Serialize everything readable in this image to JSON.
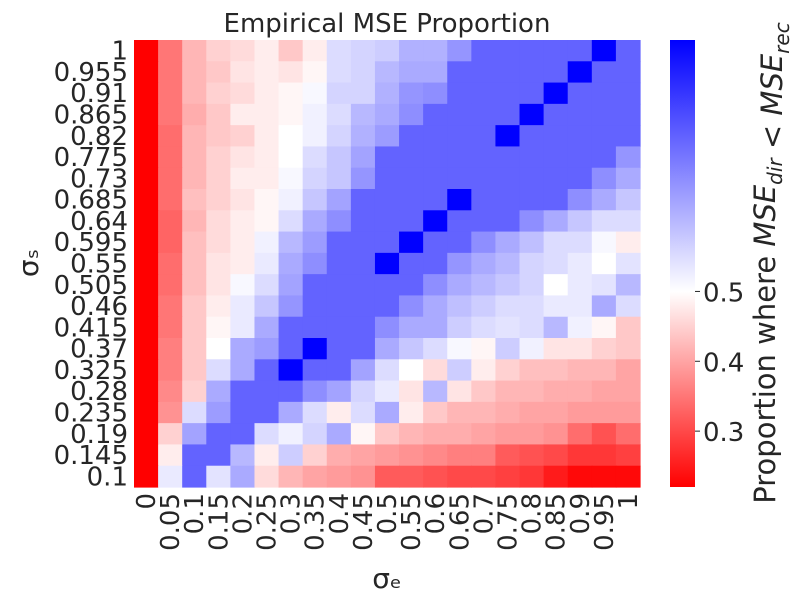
{
  "chart_data": {
    "type": "heatmap",
    "title": "Empirical MSE Proportion",
    "xlabel": "σₑ",
    "ylabel": "σₛ",
    "x": [
      "0",
      "0.05",
      "0.1",
      "0.15",
      "0.2",
      "0.25",
      "0.3",
      "0.35",
      "0.4",
      "0.45",
      "0.5",
      "0.55",
      "0.6",
      "0.65",
      "0.7",
      "0.75",
      "0.8",
      "0.85",
      "0.9",
      "0.95",
      "1"
    ],
    "y": [
      "1",
      "0.955",
      "0.91",
      "0.865",
      "0.82",
      "0.775",
      "0.73",
      "0.685",
      "0.64",
      "0.595",
      "0.55",
      "0.505",
      "0.46",
      "0.415",
      "0.37",
      "0.325",
      "0.28",
      "0.235",
      "0.19",
      "0.145",
      "0.1"
    ],
    "values": [
      [
        0.22,
        0.35,
        0.42,
        0.45,
        0.46,
        0.48,
        0.44,
        0.48,
        0.55,
        0.56,
        0.57,
        0.61,
        0.61,
        0.65,
        0.72,
        0.72,
        0.72,
        0.72,
        0.72,
        0.86,
        0.72
      ],
      [
        0.22,
        0.35,
        0.42,
        0.44,
        0.47,
        0.48,
        0.47,
        0.49,
        0.55,
        0.56,
        0.6,
        0.62,
        0.62,
        0.72,
        0.72,
        0.72,
        0.72,
        0.72,
        0.86,
        0.72,
        0.72
      ],
      [
        0.22,
        0.35,
        0.42,
        0.45,
        0.46,
        0.48,
        0.49,
        0.51,
        0.56,
        0.56,
        0.61,
        0.65,
        0.66,
        0.72,
        0.72,
        0.72,
        0.72,
        0.86,
        0.72,
        0.72,
        0.72
      ],
      [
        0.22,
        0.35,
        0.41,
        0.44,
        0.48,
        0.48,
        0.49,
        0.52,
        0.55,
        0.6,
        0.62,
        0.66,
        0.72,
        0.72,
        0.72,
        0.72,
        0.86,
        0.72,
        0.72,
        0.72,
        0.72
      ],
      [
        0.22,
        0.34,
        0.42,
        0.44,
        0.45,
        0.48,
        0.5,
        0.52,
        0.56,
        0.61,
        0.64,
        0.72,
        0.72,
        0.72,
        0.72,
        0.86,
        0.72,
        0.72,
        0.72,
        0.72,
        0.72
      ],
      [
        0.22,
        0.34,
        0.42,
        0.45,
        0.47,
        0.48,
        0.5,
        0.55,
        0.58,
        0.63,
        0.72,
        0.72,
        0.72,
        0.72,
        0.72,
        0.72,
        0.72,
        0.72,
        0.72,
        0.72,
        0.65
      ],
      [
        0.22,
        0.34,
        0.42,
        0.45,
        0.48,
        0.48,
        0.51,
        0.56,
        0.58,
        0.65,
        0.72,
        0.72,
        0.72,
        0.72,
        0.72,
        0.72,
        0.72,
        0.72,
        0.72,
        0.66,
        0.62
      ],
      [
        0.22,
        0.34,
        0.43,
        0.45,
        0.47,
        0.49,
        0.52,
        0.58,
        0.63,
        0.72,
        0.72,
        0.72,
        0.72,
        0.86,
        0.72,
        0.72,
        0.72,
        0.72,
        0.66,
        0.62,
        0.58
      ],
      [
        0.22,
        0.33,
        0.42,
        0.46,
        0.48,
        0.49,
        0.55,
        0.62,
        0.66,
        0.72,
        0.72,
        0.72,
        0.86,
        0.72,
        0.72,
        0.72,
        0.66,
        0.62,
        0.58,
        0.55,
        0.55
      ],
      [
        0.22,
        0.33,
        0.43,
        0.46,
        0.48,
        0.52,
        0.6,
        0.64,
        0.72,
        0.72,
        0.72,
        0.86,
        0.72,
        0.72,
        0.66,
        0.62,
        0.59,
        0.55,
        0.55,
        0.51,
        0.48
      ],
      [
        0.22,
        0.34,
        0.43,
        0.47,
        0.48,
        0.53,
        0.62,
        0.66,
        0.72,
        0.72,
        0.86,
        0.72,
        0.72,
        0.65,
        0.62,
        0.6,
        0.56,
        0.55,
        0.53,
        0.5,
        0.54
      ],
      [
        0.22,
        0.34,
        0.43,
        0.47,
        0.51,
        0.55,
        0.63,
        0.72,
        0.72,
        0.72,
        0.72,
        0.72,
        0.66,
        0.62,
        0.6,
        0.58,
        0.56,
        0.5,
        0.53,
        0.54,
        0.6
      ],
      [
        0.22,
        0.35,
        0.44,
        0.48,
        0.53,
        0.58,
        0.65,
        0.72,
        0.72,
        0.72,
        0.72,
        0.66,
        0.62,
        0.59,
        0.57,
        0.55,
        0.55,
        0.53,
        0.53,
        0.62,
        0.55
      ],
      [
        0.22,
        0.35,
        0.44,
        0.49,
        0.53,
        0.62,
        0.72,
        0.72,
        0.72,
        0.72,
        0.66,
        0.62,
        0.62,
        0.57,
        0.55,
        0.54,
        0.55,
        0.6,
        0.52,
        0.49,
        0.44
      ],
      [
        0.22,
        0.36,
        0.44,
        0.5,
        0.62,
        0.64,
        0.72,
        0.86,
        0.72,
        0.72,
        0.62,
        0.58,
        0.55,
        0.51,
        0.49,
        0.57,
        0.52,
        0.47,
        0.47,
        0.45,
        0.44
      ],
      [
        0.22,
        0.36,
        0.44,
        0.55,
        0.62,
        0.72,
        0.86,
        0.72,
        0.72,
        0.63,
        0.55,
        0.5,
        0.46,
        0.57,
        0.48,
        0.45,
        0.43,
        0.43,
        0.42,
        0.42,
        0.4
      ],
      [
        0.22,
        0.37,
        0.45,
        0.62,
        0.72,
        0.72,
        0.72,
        0.66,
        0.63,
        0.56,
        0.53,
        0.47,
        0.6,
        0.47,
        0.44,
        0.42,
        0.42,
        0.41,
        0.41,
        0.4,
        0.4
      ],
      [
        0.22,
        0.38,
        0.55,
        0.64,
        0.72,
        0.72,
        0.62,
        0.55,
        0.48,
        0.55,
        0.62,
        0.48,
        0.44,
        0.42,
        0.42,
        0.41,
        0.4,
        0.4,
        0.39,
        0.39,
        0.39
      ],
      [
        0.22,
        0.45,
        0.63,
        0.72,
        0.72,
        0.55,
        0.52,
        0.56,
        0.62,
        0.49,
        0.44,
        0.42,
        0.41,
        0.41,
        0.4,
        0.39,
        0.39,
        0.38,
        0.34,
        0.31,
        0.34
      ],
      [
        0.22,
        0.48,
        0.72,
        0.72,
        0.6,
        0.48,
        0.57,
        0.45,
        0.41,
        0.4,
        0.39,
        0.38,
        0.37,
        0.36,
        0.36,
        0.32,
        0.31,
        0.3,
        0.28,
        0.28,
        0.29
      ],
      [
        0.22,
        0.53,
        0.72,
        0.54,
        0.62,
        0.46,
        0.42,
        0.4,
        0.39,
        0.38,
        0.32,
        0.32,
        0.31,
        0.3,
        0.3,
        0.29,
        0.28,
        0.25,
        0.23,
        0.23,
        0.23
      ]
    ],
    "colorbar": {
      "label": "Proportion where MSEdir < MSErec",
      "label_prefix": "Proportion where ",
      "label_math": [
        {
          "t": "MSE",
          "sub": "dir"
        },
        {
          "t": " < "
        },
        {
          "t": "MSE",
          "sub": "rec"
        }
      ],
      "ticks": [
        0.3,
        0.4,
        0.5
      ],
      "tick_labels": [
        "0.3",
        "0.4",
        "0.5"
      ],
      "vmin": 0.22,
      "vmax": 0.86,
      "center": 0.5,
      "colors": {
        "low": "#ff0000",
        "center": "#ffffff",
        "high": "#0000ff"
      }
    },
    "grid": false
  }
}
